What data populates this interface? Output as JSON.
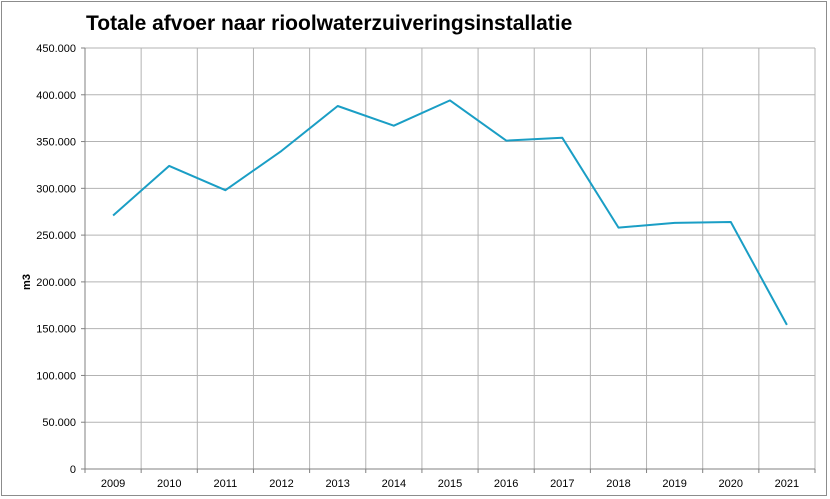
{
  "chart_data": {
    "type": "line",
    "title": "Totale afvoer naar rioolwaterzuiveringsinstallatie",
    "xlabel": "",
    "ylabel": "m3",
    "categories": [
      "2009",
      "2010",
      "2011",
      "2012",
      "2013",
      "2014",
      "2015",
      "2016",
      "2017",
      "2018",
      "2019",
      "2020",
      "2021"
    ],
    "series": [
      {
        "values": [
          271000,
          324000,
          298000,
          340000,
          388000,
          367000,
          394000,
          351000,
          354000,
          258000,
          263000,
          264000,
          154000
        ],
        "color": "#1a9ec5"
      }
    ],
    "ylim": [
      0,
      450000
    ],
    "yticks": [
      0,
      50000,
      100000,
      150000,
      200000,
      250000,
      300000,
      350000,
      400000,
      450000
    ],
    "ytick_labels": [
      "0",
      "50.000",
      "100.000",
      "150.000",
      "200.000",
      "250.000",
      "300.000",
      "350.000",
      "400.000",
      "450.000"
    ],
    "grid": true,
    "legend": "none"
  }
}
